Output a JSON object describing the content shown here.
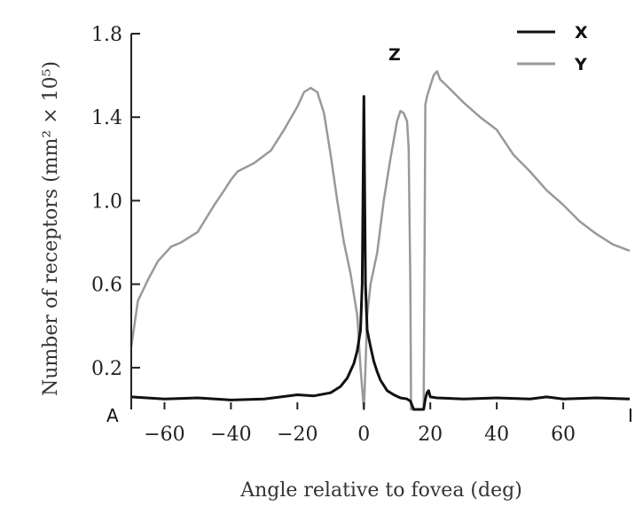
{
  "chart_data": {
    "type": "line",
    "title": "",
    "xlabel": "Angle relative to fovea (deg)",
    "ylabel": "Number of receptors (mm² × 10⁵)",
    "xlim": [
      -70,
      80
    ],
    "ylim": [
      0,
      1.8
    ],
    "x_ticks": [
      -60,
      -40,
      -20,
      0,
      20,
      40,
      60
    ],
    "x_tick_labels": [
      "−60",
      "−40",
      "−20",
      "0",
      "20",
      "40",
      "60"
    ],
    "y_ticks": [
      0.2,
      0.6,
      1.0,
      1.4,
      1.8
    ],
    "y_tick_labels": [
      "0.2",
      "0.6",
      "1.0",
      "1.4",
      "1.8"
    ],
    "grid": false,
    "legend_position": "top-right",
    "annotations": {
      "z_label": "Z",
      "left_end_marker": "A",
      "right_end_marker": "I"
    },
    "series": [
      {
        "name": "X",
        "color": "#111111",
        "x": [
          -70,
          -60,
          -50,
          -40,
          -30,
          -20,
          -15,
          -10,
          -7,
          -5,
          -3,
          -2,
          -1,
          -0.5,
          0,
          0.5,
          1,
          2,
          3,
          4,
          5,
          7,
          9,
          11,
          13,
          14,
          14.5,
          15,
          16,
          17,
          18,
          18.5,
          19,
          19.5,
          20,
          22,
          30,
          40,
          50,
          55,
          60,
          70,
          80
        ],
        "y": [
          0.06,
          0.05,
          0.055,
          0.045,
          0.05,
          0.07,
          0.065,
          0.08,
          0.11,
          0.15,
          0.22,
          0.28,
          0.38,
          0.6,
          1.5,
          0.6,
          0.38,
          0.3,
          0.23,
          0.18,
          0.14,
          0.09,
          0.07,
          0.055,
          0.05,
          0.04,
          0.02,
          0.0,
          0.0,
          0.0,
          0.0,
          0.05,
          0.08,
          0.09,
          0.06,
          0.055,
          0.05,
          0.055,
          0.05,
          0.06,
          0.05,
          0.055,
          0.05
        ]
      },
      {
        "name": "Y",
        "color": "#999999",
        "x": [
          -70,
          -68,
          -65,
          -62,
          -58,
          -55,
          -50,
          -45,
          -42,
          -40,
          -38,
          -33,
          -28,
          -24,
          -20,
          -18,
          -16,
          -14,
          -12,
          -10,
          -8,
          -6,
          -4,
          -2,
          -1,
          0,
          0.5,
          1,
          2,
          4,
          6,
          8,
          10,
          11,
          12,
          13,
          13.5,
          14,
          14.2,
          15,
          16,
          17,
          17.5,
          18,
          18.3,
          18.5,
          19,
          20,
          21,
          22,
          23,
          25,
          30,
          35,
          40,
          45,
          50,
          55,
          60,
          65,
          70,
          75,
          80
        ],
        "y": [
          0.3,
          0.52,
          0.62,
          0.71,
          0.78,
          0.8,
          0.85,
          0.98,
          1.05,
          1.1,
          1.14,
          1.18,
          1.24,
          1.34,
          1.45,
          1.52,
          1.54,
          1.52,
          1.42,
          1.22,
          1.0,
          0.8,
          0.65,
          0.45,
          0.2,
          0.0,
          0.2,
          0.45,
          0.6,
          0.75,
          1.0,
          1.2,
          1.38,
          1.43,
          1.42,
          1.38,
          1.25,
          0.6,
          0.0,
          0.0,
          0.0,
          0.0,
          0.0,
          0.0,
          0.8,
          1.46,
          1.5,
          1.55,
          1.6,
          1.62,
          1.58,
          1.55,
          1.47,
          1.4,
          1.34,
          1.22,
          1.14,
          1.05,
          0.98,
          0.9,
          0.84,
          0.79,
          0.76
        ]
      }
    ]
  }
}
